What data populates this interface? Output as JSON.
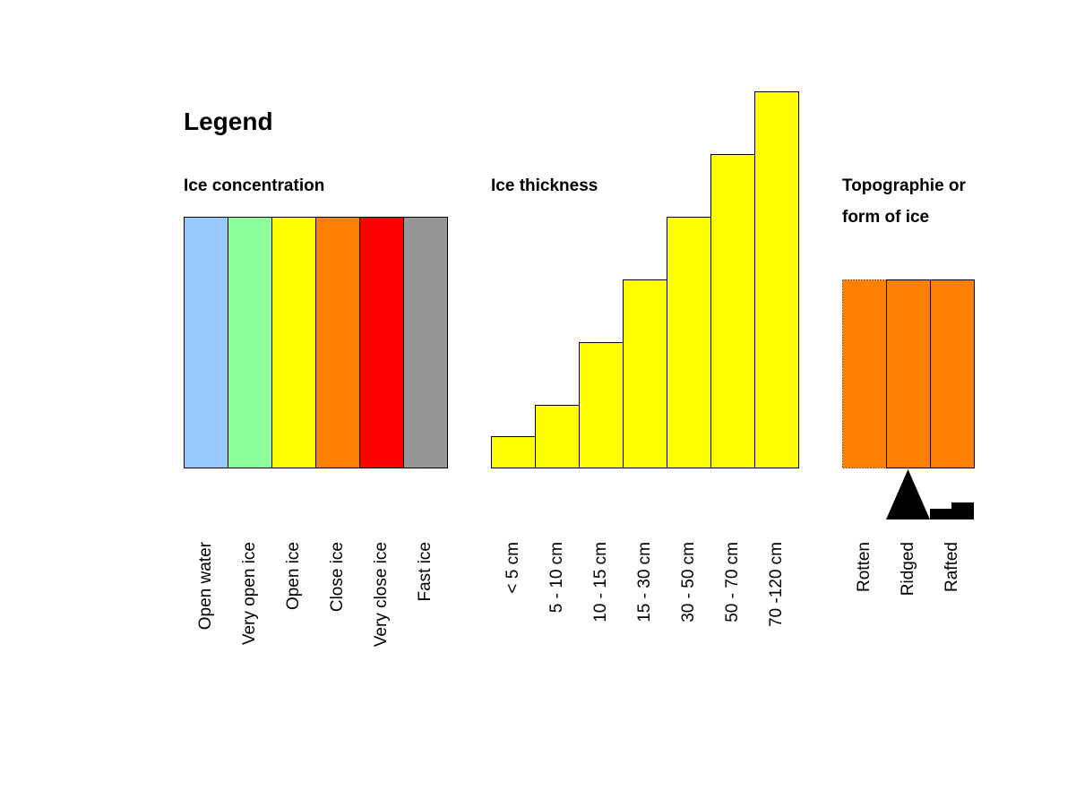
{
  "legend_title": "Legend",
  "concentration": {
    "title": "Ice concentration",
    "items": [
      {
        "label": "Open water",
        "color": "#99c8ff"
      },
      {
        "label": "Very open ice",
        "color": "#8cff9a"
      },
      {
        "label": "Open ice",
        "color": "#ffff00"
      },
      {
        "label": "Close ice",
        "color": "#ff7f00"
      },
      {
        "label": "Very close ice",
        "color": "#ff0000"
      },
      {
        "label": "Fast ice",
        "color": "#969696"
      }
    ]
  },
  "thickness": {
    "title": "Ice thickness",
    "color": "#ffff00",
    "items": [
      {
        "label": "< 5 cm",
        "level": 1
      },
      {
        "label": "5 - 10 cm",
        "level": 2
      },
      {
        "label": "10 - 15 cm",
        "level": 4
      },
      {
        "label": "15 - 30 cm",
        "level": 6
      },
      {
        "label": "30 - 50 cm",
        "level": 8
      },
      {
        "label": "50 - 70 cm",
        "level": 10
      },
      {
        "label": "70 -120 cm",
        "level": 12
      }
    ]
  },
  "topography": {
    "title_line1": "Topographie or",
    "title_line2": "form of ice",
    "color": "#ff7f00",
    "items": [
      {
        "label": "Rotten",
        "symbol": "dotted-border"
      },
      {
        "label": "Ridged",
        "symbol": "triangle-icon"
      },
      {
        "label": "Rafted",
        "symbol": "step-icon"
      }
    ]
  }
}
